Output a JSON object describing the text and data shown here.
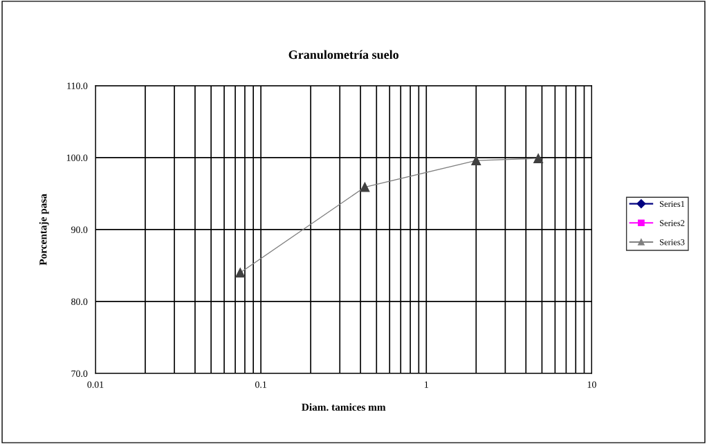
{
  "chart_data": {
    "type": "line",
    "title": "Granulometría suelo",
    "xlabel": "Diam. tamices mm",
    "ylabel": "Porcentaje pasa",
    "log": "x",
    "xlim": [
      0.01,
      10
    ],
    "xticks": [
      0.01,
      0.1,
      1,
      10
    ],
    "ylim": [
      70,
      110
    ],
    "yticks": [
      {
        "value": 70,
        "label": "70.0"
      },
      {
        "value": 80,
        "label": "80.0"
      },
      {
        "value": 90,
        "label": "90.0"
      },
      {
        "value": 100,
        "label": "100.0"
      },
      {
        "value": 110,
        "label": "110.0"
      }
    ],
    "grid": true,
    "legend": "right",
    "series": [
      {
        "name": "Series1",
        "color": "#000080",
        "marker": "diamond"
      },
      {
        "name": "Series2",
        "color": "#ff00ff",
        "marker": "square"
      },
      {
        "name": "Series3",
        "color": "#808080",
        "marker": "triangle",
        "x": [
          0.075,
          0.425,
          2.0,
          4.75
        ],
        "values": [
          84.0,
          95.9,
          99.6,
          99.9
        ]
      }
    ]
  }
}
